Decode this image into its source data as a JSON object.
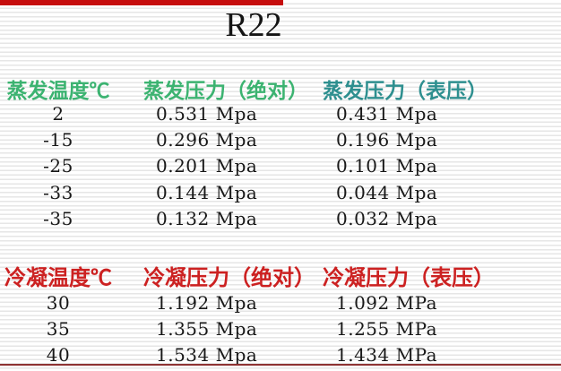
{
  "title": "R22",
  "colors": {
    "top_bar": "#c60d0d",
    "bottom_line": "#8e3232",
    "evap_header_green": "#3cb371",
    "evap_gauge_header_teal": "#2e8f8f",
    "cond_header_red": "#cc2121",
    "data_text": "#181818"
  },
  "evaporation_table": {
    "headers": [
      {
        "label": "蒸发温度℃",
        "color": "#3cb371"
      },
      {
        "label": "蒸发压力（绝对）",
        "color": "#3cb371"
      },
      {
        "label": "蒸发压力（表压）",
        "color": "#2e8f8f"
      }
    ],
    "rows": [
      [
        "2",
        "0.531 Mpa",
        "0.431 Mpa"
      ],
      [
        "-15",
        "0.296 Mpa",
        "0.196 Mpa"
      ],
      [
        "-25",
        "0.201 Mpa",
        "0.101 Mpa"
      ],
      [
        "-33",
        "0.144 Mpa",
        "0.044 Mpa"
      ],
      [
        "-35",
        "0.132 Mpa",
        "0.032 Mpa"
      ]
    ]
  },
  "condensation_table": {
    "headers": [
      {
        "label": "冷凝温度℃",
        "color": "#cc2121"
      },
      {
        "label": "冷凝压力（绝对）",
        "color": "#cc2121"
      },
      {
        "label": "冷凝压力（表压）",
        "color": "#cc2121"
      }
    ],
    "rows": [
      [
        "30",
        "1.192 Mpa",
        "1.092 MPa"
      ],
      [
        "35",
        "1.355 Mpa",
        "1.255 MPa"
      ],
      [
        "40",
        "1.534 Mpa",
        "1.434 MPa"
      ]
    ]
  }
}
